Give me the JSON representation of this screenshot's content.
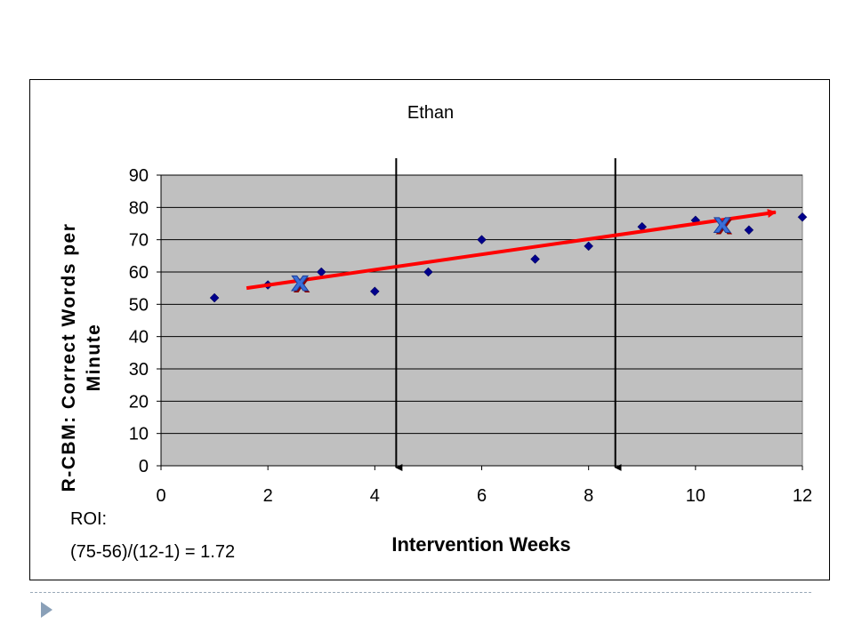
{
  "chart_data": {
    "type": "scatter",
    "title": "Ethan",
    "xlabel": "Intervention Weeks",
    "ylabel": "R-CBM: Correct Words per Minute",
    "ylabel_lines": [
      "R-CBM: Correct Words per",
      "Minute"
    ],
    "xlim": [
      0,
      12
    ],
    "ylim": [
      0,
      90
    ],
    "x_ticks": [
      0,
      2,
      4,
      6,
      8,
      10,
      12
    ],
    "y_ticks": [
      0,
      10,
      20,
      30,
      40,
      50,
      60,
      70,
      80,
      90
    ],
    "grid": "horizontal",
    "series": [
      {
        "color": "#00008b",
        "marker": "diamond",
        "points": [
          {
            "x": 1,
            "y": 52
          },
          {
            "x": 2,
            "y": 56
          },
          {
            "x": 3,
            "y": 60
          },
          {
            "x": 4,
            "y": 54
          },
          {
            "x": 5,
            "y": 60
          },
          {
            "x": 6,
            "y": 70
          },
          {
            "x": 7,
            "y": 64
          },
          {
            "x": 8,
            "y": 68
          },
          {
            "x": 9,
            "y": 74
          },
          {
            "x": 10,
            "y": 76
          },
          {
            "x": 11,
            "y": 73
          },
          {
            "x": 12,
            "y": 77
          }
        ]
      }
    ],
    "phase_lines": [
      4.4,
      8.5
    ],
    "trend_line": {
      "x1": 1.6,
      "y1": 55,
      "x2": 11.5,
      "y2": 78.5,
      "color": "#ff0000"
    },
    "x_markers": [
      {
        "x": 2.6,
        "y": 57
      },
      {
        "x": 10.5,
        "y": 75
      }
    ],
    "annotation": [
      "ROI:",
      "(75-56)/(12-1) = 1.72"
    ],
    "colors": {
      "plot_background": "#c0c0c0",
      "marker": "#00008b",
      "trend": "#ff0000",
      "x_marker": "#3b6fd8"
    }
  }
}
